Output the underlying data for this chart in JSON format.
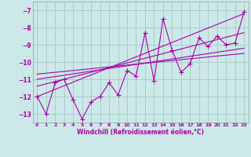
{
  "xlabel": "Windchill (Refroidissement éolien,°C)",
  "ylabel": "",
  "bg_color": "#cce8e8",
  "grid_color": "#aacccc",
  "line_color": "#aa00aa",
  "xlim": [
    -0.5,
    23.5
  ],
  "ylim": [
    -13.5,
    -6.5
  ],
  "yticks": [
    -13,
    -12,
    -11,
    -10,
    -9,
    -8,
    -7
  ],
  "xticks": [
    0,
    1,
    2,
    3,
    4,
    5,
    6,
    7,
    8,
    9,
    10,
    11,
    12,
    13,
    14,
    15,
    16,
    17,
    18,
    19,
    20,
    21,
    22,
    23
  ],
  "data_x": [
    0,
    1,
    2,
    3,
    4,
    5,
    6,
    7,
    8,
    9,
    10,
    11,
    12,
    13,
    14,
    15,
    16,
    17,
    18,
    19,
    20,
    21,
    22,
    23
  ],
  "data_y": [
    -12.0,
    -13.0,
    -11.2,
    -11.0,
    -12.2,
    -13.3,
    -12.3,
    -12.0,
    -11.2,
    -11.9,
    -10.5,
    -10.8,
    -8.3,
    -11.1,
    -7.5,
    -9.3,
    -10.6,
    -10.1,
    -8.6,
    -9.1,
    -8.5,
    -9.0,
    -8.9,
    -7.1
  ],
  "reg_lines": [
    {
      "x": [
        0,
        23
      ],
      "y": [
        -12.0,
        -7.2
      ]
    },
    {
      "x": [
        0,
        23
      ],
      "y": [
        -11.4,
        -8.3
      ]
    },
    {
      "x": [
        0,
        23
      ],
      "y": [
        -11.0,
        -9.2
      ]
    },
    {
      "x": [
        0,
        23
      ],
      "y": [
        -10.7,
        -9.5
      ]
    }
  ],
  "marker": "+",
  "marker_size": 5,
  "line_width": 0.8
}
